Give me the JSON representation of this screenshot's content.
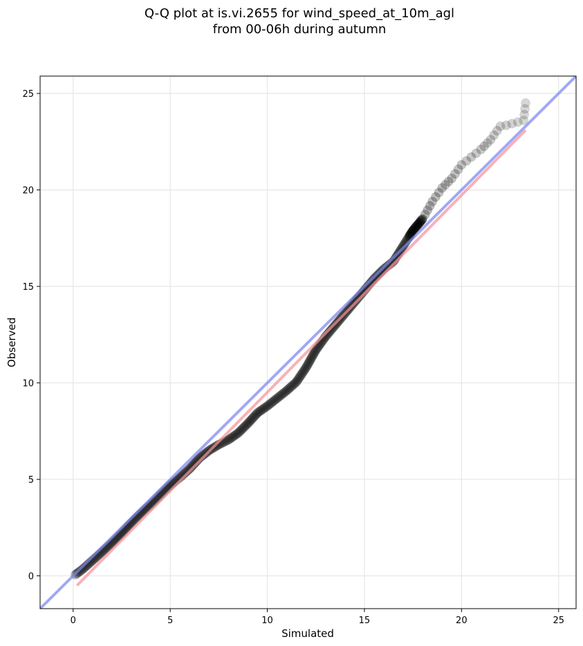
{
  "chart_data": {
    "type": "scatter",
    "title_line1": "Q-Q plot at is.vi.2655 for wind_speed_at_10m_agl",
    "title_line2": "from 00-06h during autumn",
    "xlabel": "Simulated",
    "ylabel": "Observed",
    "xlim": [
      -1.7,
      25.9
    ],
    "ylim": [
      -1.7,
      25.9
    ],
    "xticks": [
      0,
      5,
      10,
      15,
      20,
      25
    ],
    "yticks": [
      0,
      5,
      10,
      15,
      20,
      25
    ],
    "grid": true,
    "reference_lines": [
      {
        "name": "",
        "color": "#7b86f0",
        "points": [
          [
            -1.7,
            -1.7
          ],
          [
            25.9,
            25.9
          ]
        ]
      },
      {
        "name": "",
        "color": "#f4939b",
        "points": [
          [
            0.2,
            -0.5
          ],
          [
            23.3,
            23.1
          ]
        ]
      }
    ],
    "quantile_curve": [
      [
        0.1,
        0.05
      ],
      [
        0.5,
        0.35
      ],
      [
        1.0,
        0.8
      ],
      [
        1.5,
        1.25
      ],
      [
        2.0,
        1.7
      ],
      [
        2.5,
        2.2
      ],
      [
        3.0,
        2.75
      ],
      [
        3.5,
        3.25
      ],
      [
        4.0,
        3.7
      ],
      [
        4.5,
        4.2
      ],
      [
        5.0,
        4.7
      ],
      [
        5.5,
        5.1
      ],
      [
        6.0,
        5.55
      ],
      [
        6.5,
        6.1
      ],
      [
        7.0,
        6.5
      ],
      [
        7.5,
        6.8
      ],
      [
        8.0,
        7.05
      ],
      [
        8.5,
        7.4
      ],
      [
        9.0,
        7.9
      ],
      [
        9.5,
        8.45
      ],
      [
        10.0,
        8.8
      ],
      [
        10.5,
        9.2
      ],
      [
        11.0,
        9.6
      ],
      [
        11.5,
        10.05
      ],
      [
        12.0,
        10.8
      ],
      [
        12.5,
        11.7
      ],
      [
        13.0,
        12.4
      ],
      [
        13.5,
        13.0
      ],
      [
        14.0,
        13.6
      ],
      [
        14.5,
        14.2
      ],
      [
        15.0,
        14.8
      ],
      [
        15.5,
        15.4
      ],
      [
        16.0,
        15.9
      ],
      [
        16.5,
        16.3
      ],
      [
        17.0,
        17.1
      ],
      [
        17.5,
        17.9
      ],
      [
        18.0,
        18.5
      ],
      [
        18.5,
        19.4
      ],
      [
        19.0,
        20.1
      ],
      [
        19.5,
        20.6
      ],
      [
        20.0,
        21.3
      ],
      [
        20.5,
        21.7
      ],
      [
        21.0,
        22.1
      ],
      [
        21.5,
        22.6
      ],
      [
        22.0,
        23.3
      ],
      [
        22.3,
        23.35
      ],
      [
        23.2,
        23.6
      ],
      [
        23.3,
        24.5
      ]
    ],
    "point_color": "#000000"
  }
}
